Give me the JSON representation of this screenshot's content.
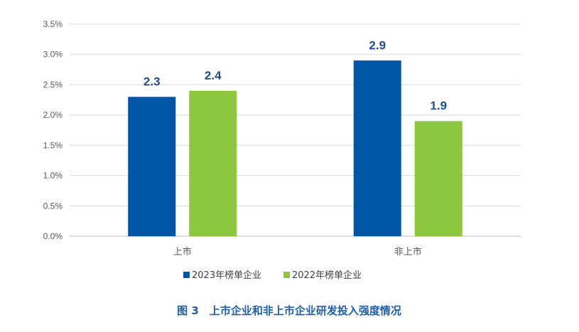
{
  "chart_data": {
    "type": "bar",
    "categories": [
      "上市",
      "非上市"
    ],
    "series": [
      {
        "name": "2023年榜单企业",
        "values": [
          2.3,
          2.9
        ],
        "color": "#0055a5"
      },
      {
        "name": "2022年榜单企业",
        "values": [
          2.4,
          1.9
        ],
        "color": "#8dc63f"
      }
    ],
    "data_labels": [
      [
        "2.3",
        "2.9"
      ],
      [
        "2.4",
        "1.9"
      ]
    ],
    "yticks": [
      "0.0%",
      "0.5%",
      "1.0%",
      "1.5%",
      "2.0%",
      "2.5%",
      "3.0%",
      "3.5%"
    ],
    "ylim": [
      0,
      3.5
    ],
    "grid": true,
    "legend_position": "bottom",
    "caption": "图 3　上市企业和非上市企业研发投入强度情况"
  }
}
